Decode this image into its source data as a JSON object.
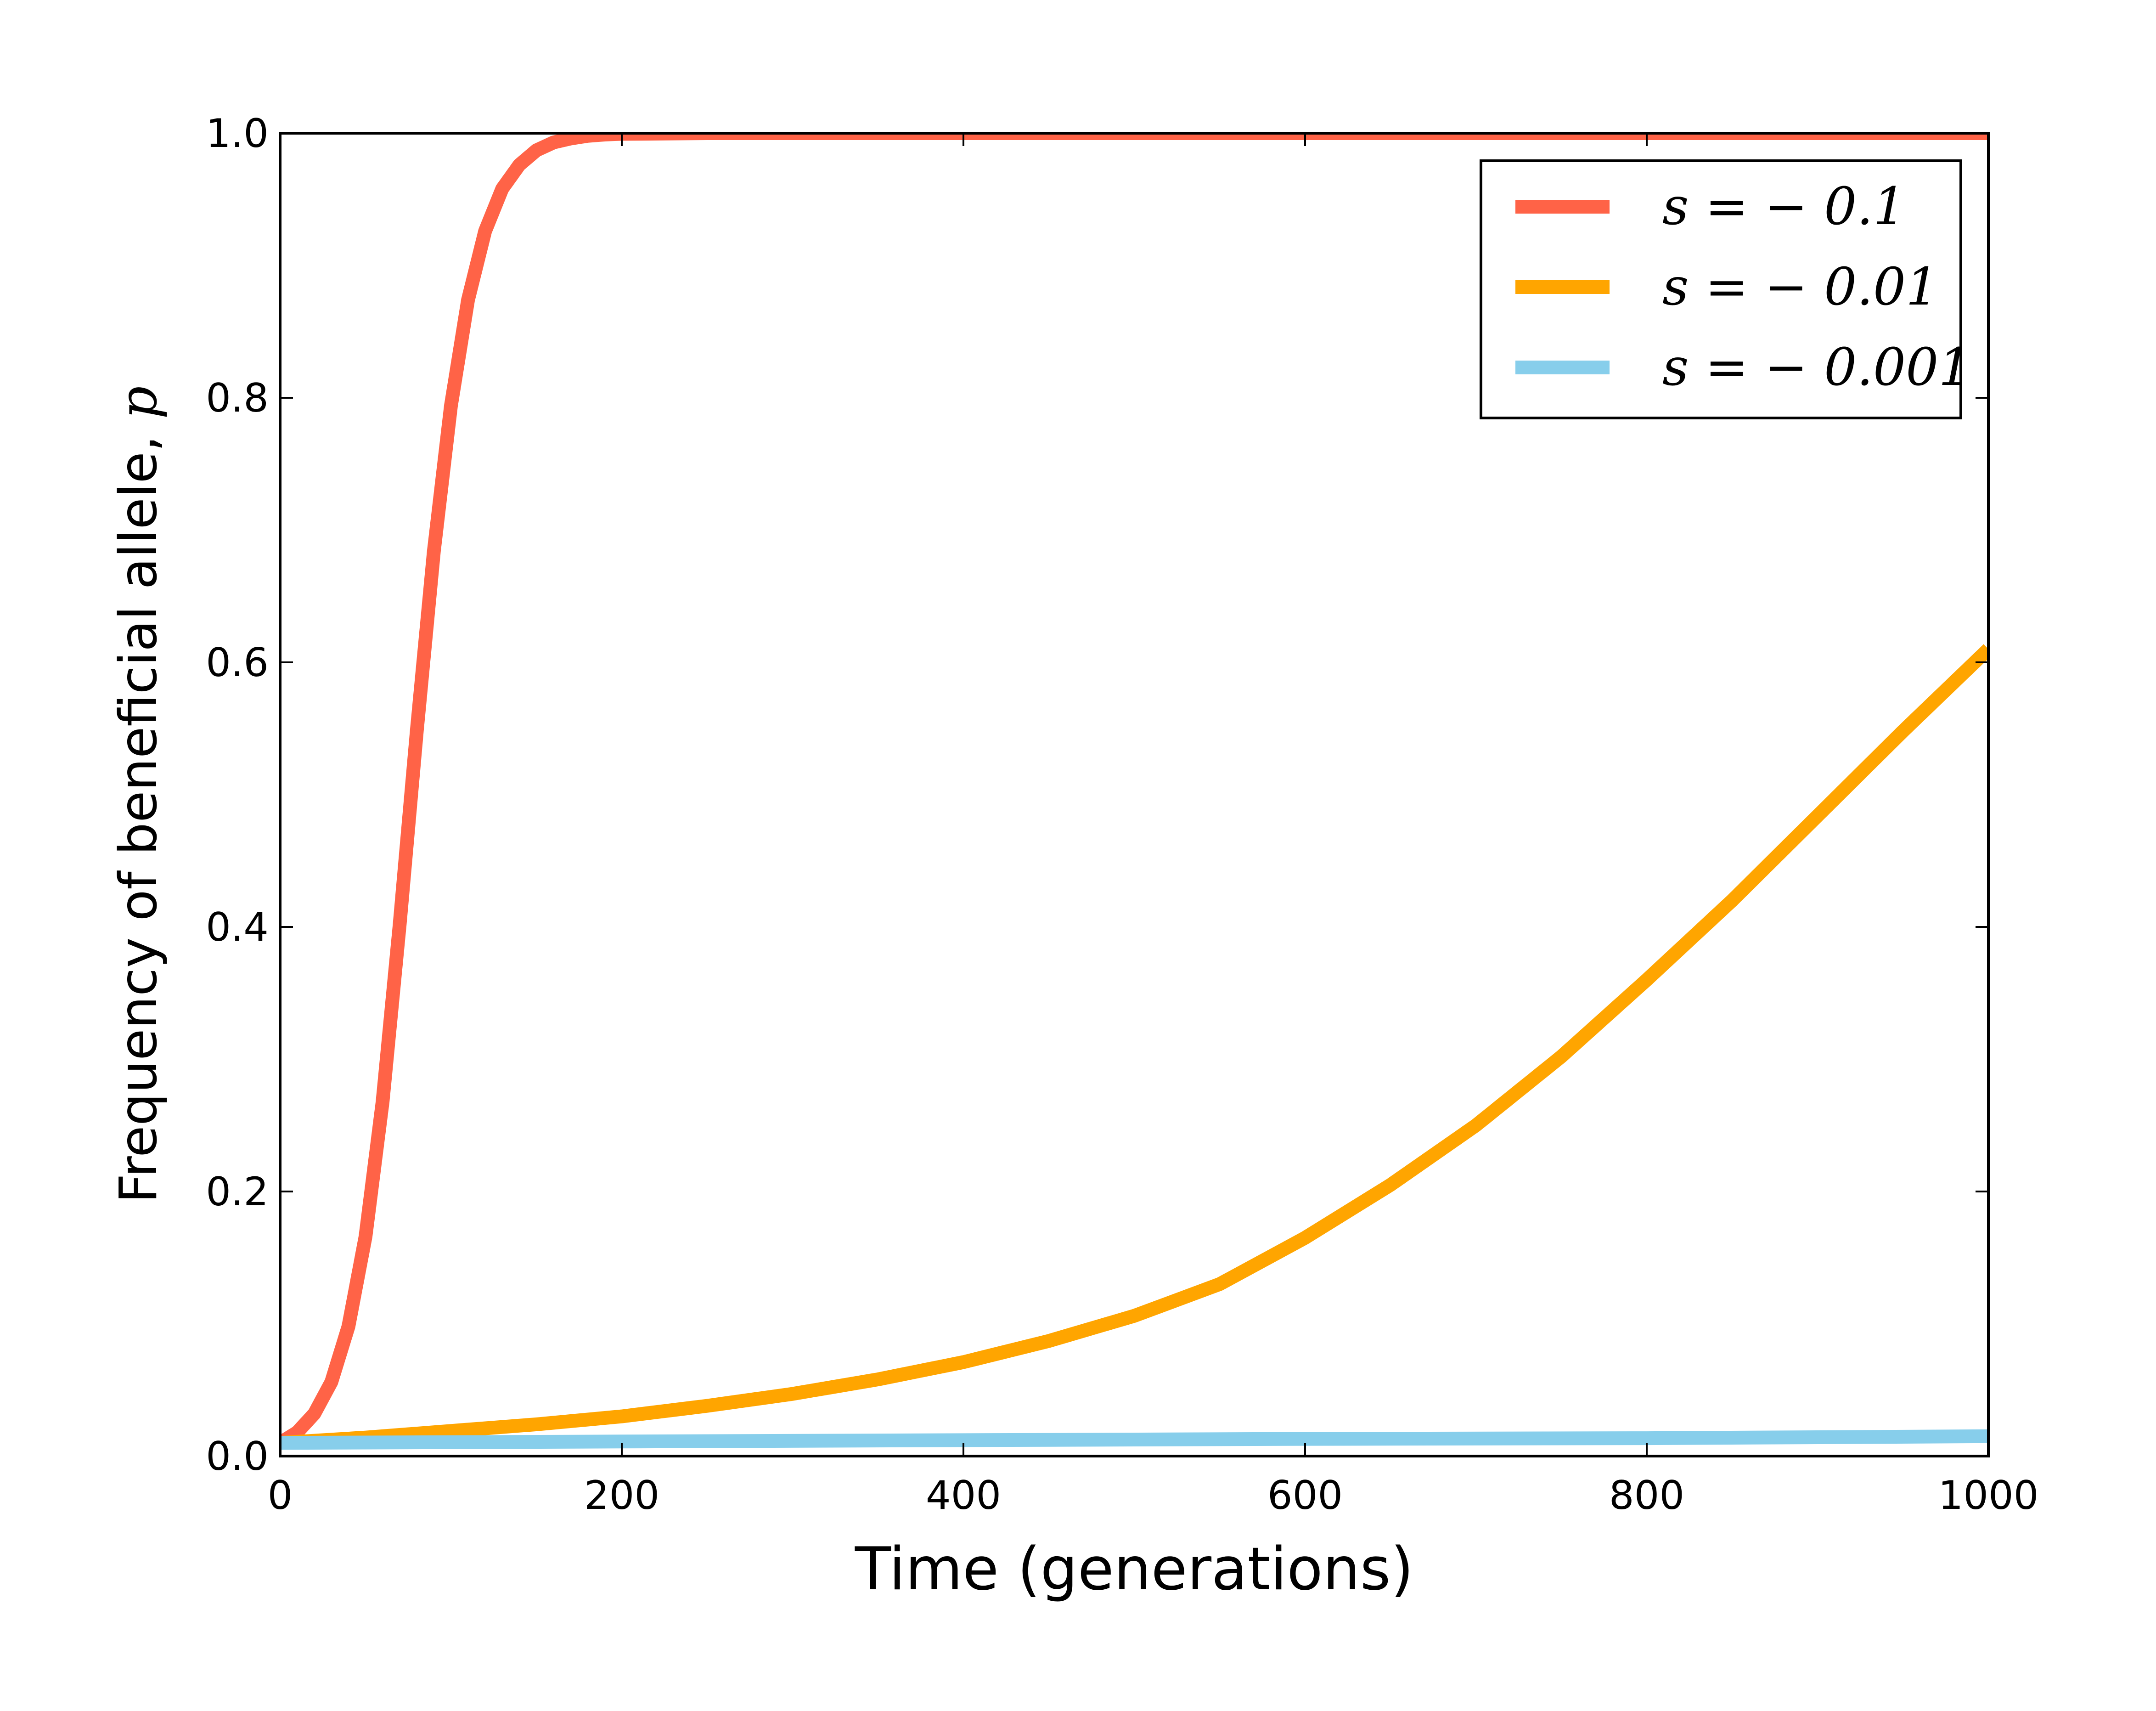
{
  "chart_data": {
    "type": "line",
    "title": "",
    "xlabel": "Time (generations)",
    "ylabel": "Frequency of beneficial allele, ",
    "ylabel_var": "p",
    "xlim": [
      0,
      1000
    ],
    "ylim": [
      0,
      1
    ],
    "x_ticks": [
      0,
      200,
      400,
      600,
      800,
      1000
    ],
    "y_ticks": [
      0.0,
      0.2,
      0.4,
      0.6,
      0.8,
      1.0
    ],
    "x_tick_labels": [
      "0",
      "200",
      "400",
      "600",
      "800",
      "1000"
    ],
    "y_tick_labels": [
      "0.0",
      "0.2",
      "0.4",
      "0.6",
      "0.8",
      "1.0"
    ],
    "grid": false,
    "legend_position": "top-right",
    "series": [
      {
        "name": "s = − 0.1",
        "color": "#ff6347",
        "x": [
          0,
          10,
          20,
          30,
          40,
          50,
          60,
          70,
          80,
          90,
          100,
          110,
          120,
          130,
          140,
          150,
          160,
          170,
          180,
          190,
          200,
          250,
          300,
          400,
          600,
          800,
          1000
        ],
        "y": [
          0.01,
          0.018,
          0.032,
          0.056,
          0.098,
          0.166,
          0.268,
          0.402,
          0.548,
          0.684,
          0.794,
          0.874,
          0.926,
          0.958,
          0.976,
          0.987,
          0.993,
          0.996,
          0.998,
          0.999,
          0.9995,
          1.0,
          1.0,
          1.0,
          1.0,
          1.0,
          1.0
        ]
      },
      {
        "name": "s = − 0.01",
        "color": "#ffa500",
        "x": [
          0,
          50,
          100,
          150,
          200,
          250,
          300,
          350,
          400,
          450,
          500,
          550,
          600,
          650,
          700,
          750,
          800,
          850,
          900,
          950,
          1000
        ],
        "y": [
          0.01,
          0.014,
          0.019,
          0.024,
          0.03,
          0.038,
          0.047,
          0.058,
          0.071,
          0.087,
          0.106,
          0.13,
          0.165,
          0.205,
          0.25,
          0.302,
          0.36,
          0.42,
          0.484,
          0.548,
          0.61
        ]
      },
      {
        "name": "s = − 0.001",
        "color": "#87ceeb",
        "x": [
          0,
          200,
          400,
          600,
          800,
          1000
        ],
        "y": [
          0.01,
          0.011,
          0.012,
          0.013,
          0.0135,
          0.015
        ]
      }
    ]
  }
}
